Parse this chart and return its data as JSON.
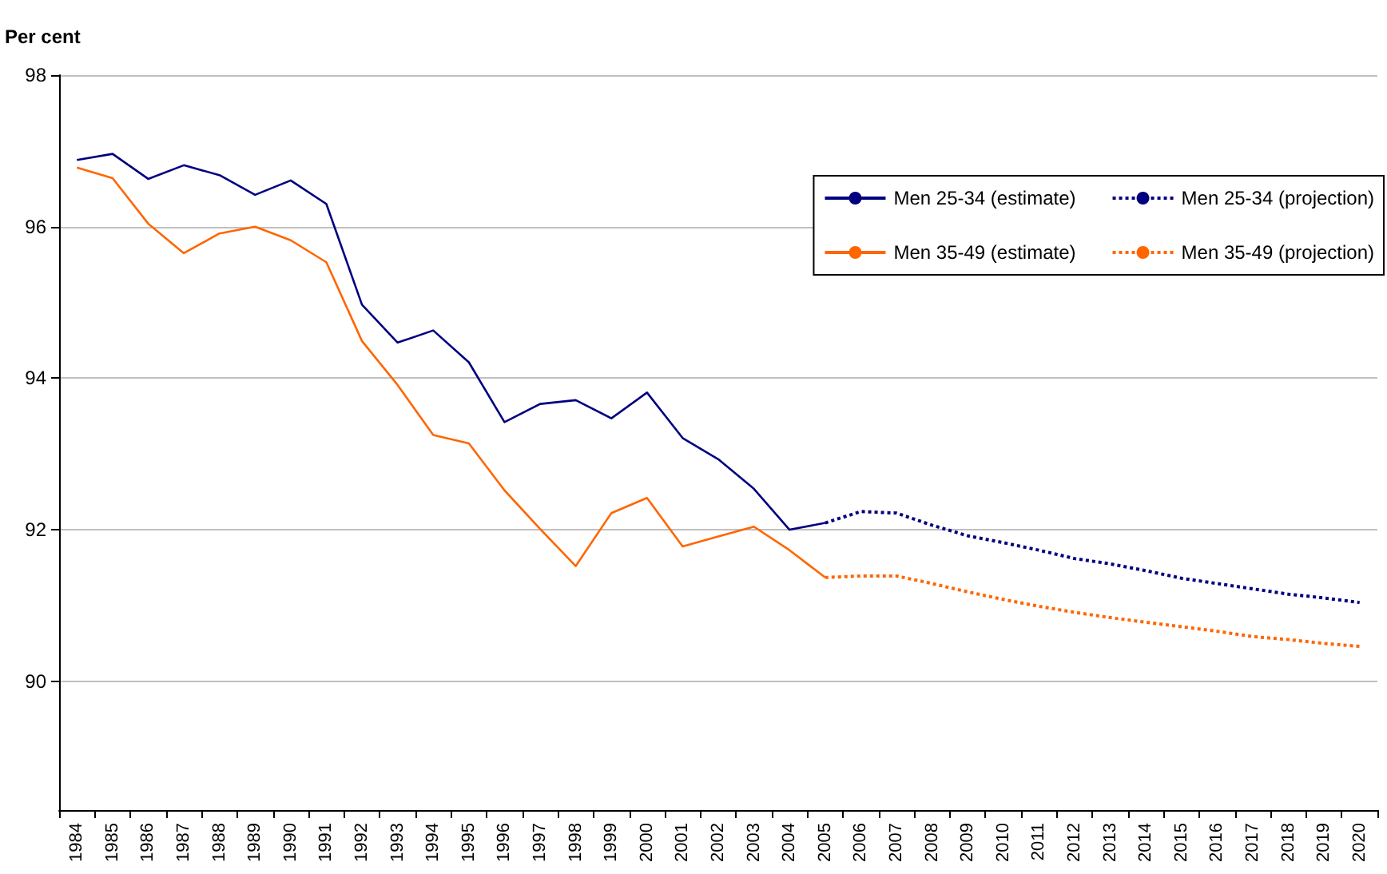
{
  "chart_data": {
    "type": "line",
    "ylabel": "Per cent",
    "categories": [
      "1984",
      "1985",
      "1986",
      "1987",
      "1988",
      "1989",
      "1990",
      "1991",
      "1992",
      "1993",
      "1994",
      "1995",
      "1996",
      "1997",
      "1998",
      "1999",
      "2000",
      "2001",
      "2002",
      "2003",
      "2004",
      "2005",
      "2006",
      "2007",
      "2008",
      "2009",
      "2010",
      "2011",
      "2012",
      "2013",
      "2014",
      "2015",
      "2016",
      "2017",
      "2018",
      "2019",
      "2020"
    ],
    "series": [
      {
        "name": "Men 25-34 (estimate)",
        "color": "#000080",
        "line_style": "solid",
        "values": [
          96.88,
          96.96,
          96.63,
          96.81,
          96.68,
          96.42,
          96.61,
          96.3,
          94.97,
          94.47,
          94.63,
          94.21,
          93.42,
          93.66,
          93.71,
          93.47,
          93.81,
          93.21,
          92.93,
          92.54,
          92.0,
          92.09,
          null,
          null,
          null,
          null,
          null,
          null,
          null,
          null,
          null,
          null,
          null,
          null,
          null,
          null,
          null
        ]
      },
      {
        "name": "Men 25-34 (projection)",
        "color": "#000080",
        "line_style": "dotted",
        "values": [
          null,
          null,
          null,
          null,
          null,
          null,
          null,
          null,
          null,
          null,
          null,
          null,
          null,
          null,
          null,
          null,
          null,
          null,
          null,
          null,
          null,
          92.09,
          92.24,
          92.22,
          92.06,
          91.92,
          91.83,
          91.73,
          91.62,
          91.55,
          91.46,
          91.36,
          91.29,
          91.22,
          91.15,
          91.1,
          91.04
        ]
      },
      {
        "name": "Men 35-49 (estimate)",
        "color": "#ff6600",
        "line_style": "solid",
        "values": [
          96.78,
          96.64,
          96.04,
          95.65,
          95.91,
          96.0,
          95.82,
          95.53,
          94.49,
          93.91,
          93.25,
          93.14,
          92.52,
          92.01,
          91.52,
          92.22,
          92.42,
          91.78,
          91.91,
          92.04,
          91.73,
          91.37,
          null,
          null,
          null,
          null,
          null,
          null,
          null,
          null,
          null,
          null,
          null,
          null,
          null,
          null,
          null
        ]
      },
      {
        "name": "Men 35-49 (projection)",
        "color": "#ff6600",
        "line_style": "dotted",
        "values": [
          null,
          null,
          null,
          null,
          null,
          null,
          null,
          null,
          null,
          null,
          null,
          null,
          null,
          null,
          null,
          null,
          null,
          null,
          null,
          null,
          null,
          91.37,
          91.39,
          91.39,
          91.29,
          91.18,
          91.08,
          90.99,
          90.91,
          90.84,
          90.78,
          90.72,
          90.66,
          90.59,
          90.55,
          90.5,
          90.46
        ]
      }
    ],
    "ylim": [
      88.3,
      98
    ],
    "yticks": [
      90,
      92,
      94,
      96,
      98
    ],
    "grid": "y",
    "legend": "top right",
    "marker": "none"
  }
}
